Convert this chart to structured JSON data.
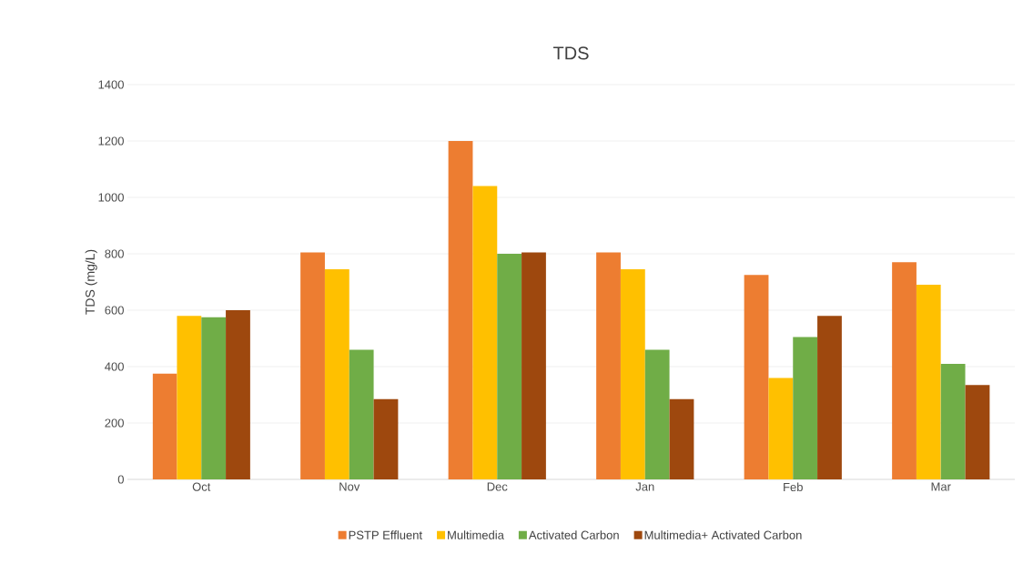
{
  "chart_data": {
    "type": "bar",
    "title": "TDS",
    "ylabel": "TDS  (mg/L)",
    "categories": [
      "Oct",
      "Nov",
      "Dec",
      "Jan",
      "Feb",
      "Mar"
    ],
    "series": [
      {
        "name": "PSTP Effluent",
        "color": "#ed7d31",
        "values": [
          375,
          805,
          1200,
          805,
          725,
          770
        ]
      },
      {
        "name": "Multimedia",
        "color": "#ffc000",
        "values": [
          580,
          745,
          1040,
          745,
          360,
          690
        ]
      },
      {
        "name": "Activated Carbon",
        "color": "#70ad47",
        "values": [
          575,
          460,
          800,
          460,
          505,
          410
        ]
      },
      {
        "name": "Multimedia+ Activated Carbon",
        "color": "#9e480e",
        "values": [
          600,
          285,
          805,
          285,
          580,
          335
        ]
      }
    ],
    "ylim": [
      0,
      1400
    ],
    "yticks": [
      0,
      200,
      400,
      600,
      800,
      1000,
      1200,
      1400
    ],
    "grid": "y",
    "legend": "bottom"
  }
}
